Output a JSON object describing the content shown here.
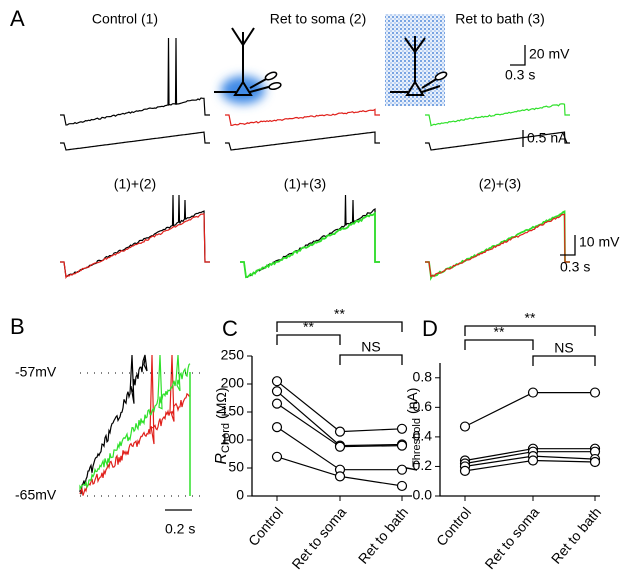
{
  "panel_a": {
    "label": "A",
    "conditions": [
      "Control (1)",
      "Ret to soma (2)",
      "Ret to bath (3)"
    ],
    "scale_top": [
      "20 mV",
      "0.3 s",
      "0.5 nA"
    ],
    "overlays": [
      "(1)+(2)",
      "(1)+(3)",
      "(2)+(3)"
    ],
    "scale_bottom": [
      "10 mV",
      "0.3 s"
    ]
  },
  "panel_b": {
    "label": "B",
    "levels": [
      "-57mV",
      "-65mV"
    ],
    "scale": "0.2 s"
  },
  "chart_data": [
    {
      "type": "paired-scatter",
      "panel_label": "C",
      "y_label": {
        "main": "R",
        "sub": "Chord",
        "unit": "(MΩ)"
      },
      "categories": [
        "Control",
        "Ret to soma",
        "Ret to bath"
      ],
      "color": "#000000",
      "series": [
        {
          "values": [
            205,
            115,
            120
          ]
        },
        {
          "values": [
            187,
            90,
            92
          ]
        },
        {
          "values": [
            165,
            88,
            90
          ]
        },
        {
          "values": [
            123,
            47,
            47
          ]
        },
        {
          "values": [
            70,
            35,
            18
          ]
        }
      ],
      "ylim": [
        0,
        250
      ],
      "yticks": [
        0,
        50,
        100,
        150,
        200,
        250
      ],
      "annotations": [
        "**",
        "**",
        "NS"
      ]
    },
    {
      "type": "paired-scatter",
      "panel_label": "D",
      "y_label": {
        "main": "I",
        "sub": "Threshold",
        "unit": "(nA)"
      },
      "categories": [
        "Control",
        "Ret to soma",
        "Ret to bath"
      ],
      "color": "#000000",
      "series": [
        {
          "values": [
            0.47,
            0.7,
            0.7
          ]
        },
        {
          "values": [
            0.24,
            0.32,
            0.32
          ]
        },
        {
          "values": [
            0.22,
            0.3,
            0.3
          ]
        },
        {
          "values": [
            0.2,
            0.27,
            0.25
          ]
        },
        {
          "values": [
            0.17,
            0.24,
            0.23
          ]
        }
      ],
      "ylim": [
        0,
        0.9
      ],
      "yticks": [
        {
          "value": 0,
          "label": "0.0"
        },
        0.2,
        0.4,
        0.6,
        0.8
      ],
      "annotations": [
        "**",
        "**",
        "NS"
      ]
    }
  ]
}
